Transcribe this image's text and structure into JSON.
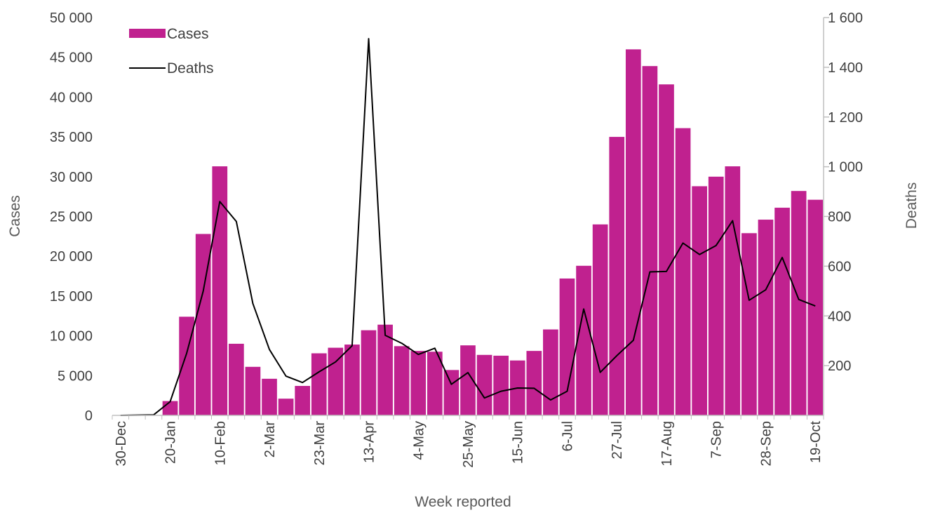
{
  "chart_data": {
    "type": "bar",
    "xlabel": "Week reported",
    "ylabel": "Cases",
    "y2label": "Deaths",
    "ylim": [
      0,
      50000
    ],
    "y2lim": [
      0,
      1600
    ],
    "y_ticks": [
      "0",
      "5 000",
      "10 000",
      "15 000",
      "20 000",
      "25 000",
      "30 000",
      "35 000",
      "40 000",
      "45 000",
      "50 000"
    ],
    "y2_ticks": [
      "200",
      "400",
      "600",
      "800",
      "1 000",
      "1 200",
      "1 400",
      "1 600"
    ],
    "x_tick_labels": [
      "30-Dec",
      "20-Jan",
      "10-Feb",
      "2-Mar",
      "23-Mar",
      "13-Apr",
      "4-May",
      "25-May",
      "15-Jun",
      "6-Jul",
      "27-Jul",
      "17-Aug",
      "7-Sep",
      "28-Sep",
      "19-Oct"
    ],
    "legend": {
      "placement": "top-left"
    },
    "grid": false,
    "series": [
      {
        "name": "Cases",
        "type": "bar",
        "axis": "left",
        "color": "#C0218F",
        "values": [
          0,
          0,
          0,
          1800,
          12400,
          22800,
          31300,
          9000,
          6100,
          4600,
          2100,
          3700,
          7800,
          8500,
          8900,
          10700,
          11400,
          8700,
          8100,
          8000,
          5700,
          8800,
          7600,
          7500,
          6900,
          8100,
          10800,
          17200,
          18800,
          24000,
          35000,
          46000,
          43900,
          41600,
          36100,
          28800,
          30000,
          31300,
          22900,
          24600,
          26100,
          28200,
          27100
        ]
      },
      {
        "name": "Deaths",
        "type": "line",
        "axis": "right",
        "color": "#000000",
        "values": [
          0,
          1,
          2,
          55,
          250,
          500,
          860,
          780,
          450,
          265,
          158,
          132,
          175,
          215,
          280,
          1515,
          322,
          290,
          245,
          270,
          125,
          172,
          70,
          97,
          110,
          109,
          62,
          97,
          428,
          173,
          240,
          302,
          577,
          579,
          693,
          647,
          683,
          783,
          463,
          505,
          635,
          466,
          440
        ]
      }
    ]
  }
}
